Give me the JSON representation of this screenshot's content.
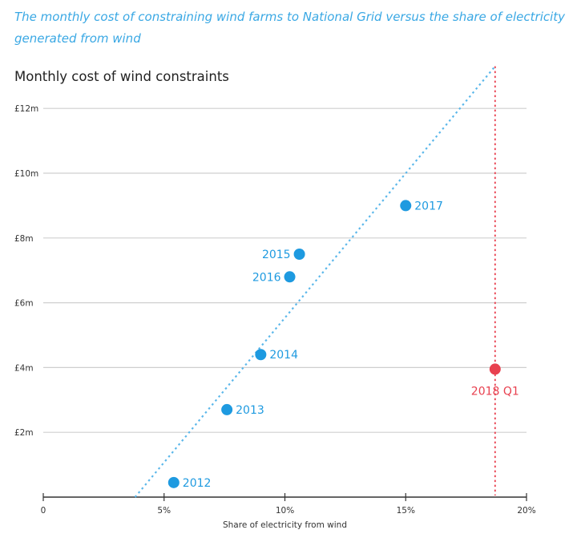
{
  "subtitle": "The monthly cost of constraining wind farms to National Grid versus the share of electricity generated from wind",
  "chart_data": {
    "type": "scatter",
    "title": "Monthly cost of wind constraints",
    "xlabel": "Share of electricity from wind",
    "ylabel": "",
    "xlim": [
      0,
      20
    ],
    "ylim": [
      0,
      13.2
    ],
    "x_ticks": [
      {
        "v": 0,
        "label": "0"
      },
      {
        "v": 5,
        "label": "5%"
      },
      {
        "v": 10,
        "label": "10%"
      },
      {
        "v": 15,
        "label": "15%"
      },
      {
        "v": 20,
        "label": "20%"
      }
    ],
    "y_ticks": [
      {
        "v": 2,
        "label": "£2m"
      },
      {
        "v": 4,
        "label": "£4m"
      },
      {
        "v": 6,
        "label": "£6m"
      },
      {
        "v": 8,
        "label": "£8m"
      },
      {
        "v": 10,
        "label": "£10m"
      },
      {
        "v": 12,
        "label": "£12m"
      }
    ],
    "grid": "horizontal",
    "points": [
      {
        "label": "2012",
        "x": 5.4,
        "y": 0.45,
        "color": "#1e9ae0"
      },
      {
        "label": "2013",
        "x": 7.6,
        "y": 2.7,
        "color": "#1e9ae0"
      },
      {
        "label": "2014",
        "x": 9.0,
        "y": 4.4,
        "color": "#1e9ae0"
      },
      {
        "label": "2015",
        "x": 10.6,
        "y": 7.5,
        "color": "#1e9ae0",
        "label_side": "left"
      },
      {
        "label": "2016",
        "x": 10.2,
        "y": 6.8,
        "color": "#1e9ae0",
        "label_side": "left"
      },
      {
        "label": "2017",
        "x": 15.0,
        "y": 9.0,
        "color": "#1e9ae0"
      },
      {
        "label": "2018 Q1",
        "x": 18.7,
        "y": 3.95,
        "color": "#e8404f",
        "label_side": "below"
      }
    ],
    "trend_line": {
      "x": [
        3.8,
        18.7
      ],
      "y": [
        0,
        13.3
      ],
      "color": "#5bb7ea",
      "style": "dotted"
    },
    "highlight_drop_line": {
      "x": 18.7,
      "color": "#e8404f",
      "style": "dotted"
    }
  }
}
